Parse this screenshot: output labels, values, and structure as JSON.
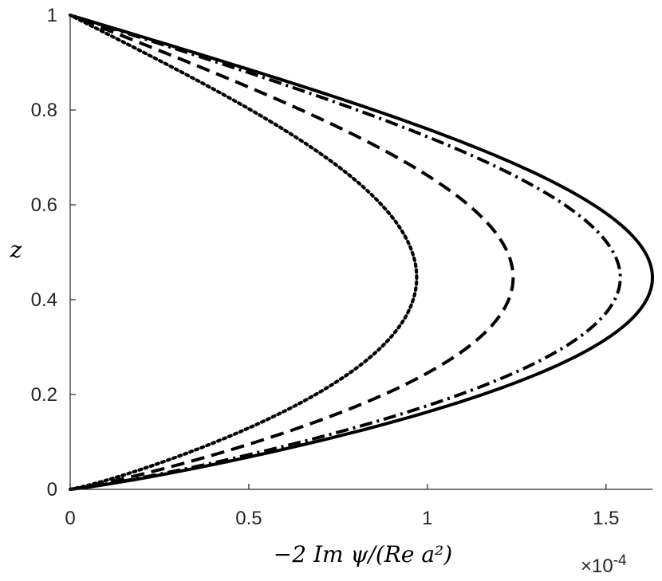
{
  "chart_data": {
    "type": "line",
    "xlabel": "−2 Im ψ/(Re a²)",
    "ylabel": "z",
    "x_exponent_label": "×10",
    "x_exponent_power": "-4",
    "xlim": [
      0,
      1.63
    ],
    "ylim": [
      0,
      1
    ],
    "x_ticks": [
      0,
      0.5,
      1,
      1.5
    ],
    "x_tick_labels": [
      "0",
      "0.5",
      "1",
      "1.5"
    ],
    "y_ticks": [
      0,
      0.2,
      0.4,
      0.6,
      0.8,
      1
    ],
    "y_tick_labels": [
      "0",
      "0.2",
      "0.4",
      "0.6",
      "0.8",
      "1"
    ],
    "grid": false,
    "x_scale": "x1e-4",
    "series": [
      {
        "style": "solid",
        "color": "#000000",
        "peak_x": 1.63,
        "peak_z": 0.52
      },
      {
        "style": "dashdot",
        "color": "#000000",
        "peak_x": 1.54,
        "peak_z": 0.52
      },
      {
        "style": "dashed",
        "color": "#000000",
        "peak_x": 1.24,
        "peak_z": 0.52
      },
      {
        "style": "dotted",
        "color": "#000000",
        "peak_x": 0.97,
        "peak_z": 0.52
      }
    ]
  }
}
